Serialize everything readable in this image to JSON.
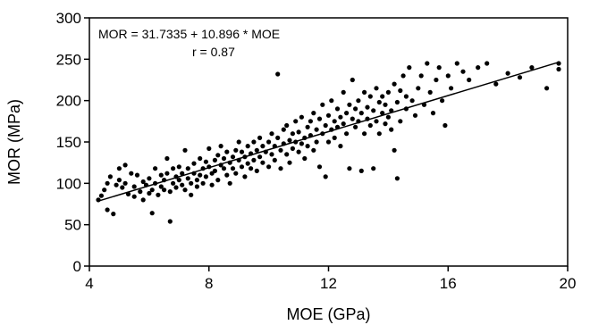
{
  "chart_data": {
    "type": "scatter",
    "xlabel": "MOE (GPa)",
    "ylabel": "MOR (MPa)",
    "xlim": [
      4,
      20
    ],
    "ylim": [
      0,
      300
    ],
    "xticks": [
      4,
      8,
      12,
      16,
      20
    ],
    "yticks": [
      0,
      50,
      100,
      150,
      200,
      250,
      300
    ],
    "grid": false,
    "legend": "none",
    "annotations": {
      "equation": "MOR = 31.7335 + 10.896 * MOE",
      "r": "r = 0.87"
    },
    "fit_line": {
      "intercept": 31.7335,
      "slope": 10.896,
      "x_range": [
        4.3,
        19.7
      ]
    },
    "colors": {
      "points": "#000000",
      "line": "#000000"
    },
    "series": [
      {
        "points": [
          [
            4.3,
            80
          ],
          [
            4.4,
            85
          ],
          [
            4.5,
            92
          ],
          [
            4.6,
            100
          ],
          [
            4.6,
            68
          ],
          [
            4.7,
            108
          ],
          [
            4.8,
            63
          ],
          [
            4.9,
            98
          ],
          [
            5.0,
            104
          ],
          [
            5.0,
            118
          ],
          [
            5.1,
            95
          ],
          [
            5.2,
            122
          ],
          [
            5.2,
            100
          ],
          [
            5.3,
            87
          ],
          [
            5.4,
            112
          ],
          [
            5.5,
            96
          ],
          [
            5.5,
            84
          ],
          [
            5.6,
            110
          ],
          [
            5.7,
            90
          ],
          [
            5.8,
            102
          ],
          [
            5.8,
            80
          ],
          [
            5.9,
            98
          ],
          [
            6.0,
            88
          ],
          [
            6.0,
            106
          ],
          [
            6.1,
            64
          ],
          [
            6.1,
            92
          ],
          [
            6.2,
            100
          ],
          [
            6.2,
            118
          ],
          [
            6.3,
            86
          ],
          [
            6.4,
            96
          ],
          [
            6.4,
            110
          ],
          [
            6.5,
            104
          ],
          [
            6.5,
            92
          ],
          [
            6.6,
            130
          ],
          [
            6.6,
            112
          ],
          [
            6.7,
            54
          ],
          [
            6.7,
            90
          ],
          [
            6.8,
            100
          ],
          [
            6.8,
            118
          ],
          [
            6.9,
            108
          ],
          [
            6.9,
            95
          ],
          [
            7.0,
            104
          ],
          [
            7.0,
            120
          ],
          [
            7.1,
            98
          ],
          [
            7.1,
            112
          ],
          [
            7.2,
            140
          ],
          [
            7.2,
            92
          ],
          [
            7.3,
            106
          ],
          [
            7.3,
            118
          ],
          [
            7.4,
            100
          ],
          [
            7.4,
            86
          ],
          [
            7.5,
            112
          ],
          [
            7.5,
            124
          ],
          [
            7.6,
            104
          ],
          [
            7.6,
            96
          ],
          [
            7.7,
            130
          ],
          [
            7.7,
            110
          ],
          [
            7.8,
            118
          ],
          [
            7.8,
            100
          ],
          [
            7.9,
            126
          ],
          [
            7.9,
            108
          ],
          [
            8.0,
            120
          ],
          [
            8.0,
            142
          ],
          [
            8.1,
            112
          ],
          [
            8.1,
            98
          ],
          [
            8.2,
            128
          ],
          [
            8.2,
            115
          ],
          [
            8.3,
            134
          ],
          [
            8.3,
            104
          ],
          [
            8.4,
            122
          ],
          [
            8.4,
            145
          ],
          [
            8.5,
            118
          ],
          [
            8.5,
            130
          ],
          [
            8.6,
            110
          ],
          [
            8.6,
            138
          ],
          [
            8.7,
            125
          ],
          [
            8.7,
            100
          ],
          [
            8.8,
            132
          ],
          [
            8.8,
            118
          ],
          [
            8.9,
            140
          ],
          [
            8.9,
            112
          ],
          [
            9.0,
            128
          ],
          [
            9.0,
            150
          ],
          [
            9.1,
            120
          ],
          [
            9.1,
            138
          ],
          [
            9.2,
            108
          ],
          [
            9.2,
            132
          ],
          [
            9.3,
            145
          ],
          [
            9.3,
            124
          ],
          [
            9.4,
            118
          ],
          [
            9.4,
            136
          ],
          [
            9.5,
            150
          ],
          [
            9.5,
            128
          ],
          [
            9.6,
            140
          ],
          [
            9.6,
            115
          ],
          [
            9.7,
            155
          ],
          [
            9.7,
            132
          ],
          [
            9.8,
            125
          ],
          [
            9.8,
            145
          ],
          [
            9.9,
            138
          ],
          [
            10.0,
            150
          ],
          [
            10.0,
            120
          ],
          [
            10.1,
            160
          ],
          [
            10.1,
            135
          ],
          [
            10.2,
            145
          ],
          [
            10.2,
            128
          ],
          [
            10.3,
            232
          ],
          [
            10.3,
            155
          ],
          [
            10.4,
            140
          ],
          [
            10.4,
            118
          ],
          [
            10.5,
            165
          ],
          [
            10.5,
            148
          ],
          [
            10.6,
            135
          ],
          [
            10.6,
            170
          ],
          [
            10.7,
            152
          ],
          [
            10.7,
            125
          ],
          [
            10.8,
            160
          ],
          [
            10.8,
            142
          ],
          [
            10.9,
            175
          ],
          [
            10.9,
            150
          ],
          [
            11.0,
            138
          ],
          [
            11.0,
            162
          ],
          [
            11.1,
            148
          ],
          [
            11.1,
            180
          ],
          [
            11.2,
            155
          ],
          [
            11.2,
            130
          ],
          [
            11.3,
            168
          ],
          [
            11.3,
            145
          ],
          [
            11.4,
            175
          ],
          [
            11.4,
            158
          ],
          [
            11.5,
            140
          ],
          [
            11.5,
            185
          ],
          [
            11.6,
            165
          ],
          [
            11.6,
            150
          ],
          [
            11.7,
            120
          ],
          [
            11.7,
            178
          ],
          [
            11.8,
            160
          ],
          [
            11.8,
            195
          ],
          [
            11.9,
            170
          ],
          [
            11.9,
            108
          ],
          [
            12.0,
            182
          ],
          [
            12.0,
            150
          ],
          [
            12.1,
            165
          ],
          [
            12.1,
            200
          ],
          [
            12.2,
            175
          ],
          [
            12.2,
            155
          ],
          [
            12.3,
            190
          ],
          [
            12.3,
            168
          ],
          [
            12.4,
            180
          ],
          [
            12.4,
            145
          ],
          [
            12.5,
            210
          ],
          [
            12.5,
            172
          ],
          [
            12.6,
            185
          ],
          [
            12.6,
            160
          ],
          [
            12.7,
            195
          ],
          [
            12.7,
            118
          ],
          [
            12.8,
            178
          ],
          [
            12.8,
            225
          ],
          [
            12.9,
            190
          ],
          [
            12.9,
            168
          ],
          [
            13.0,
            200
          ],
          [
            13.0,
            175
          ],
          [
            13.1,
            185
          ],
          [
            13.1,
            115
          ],
          [
            13.2,
            210
          ],
          [
            13.2,
            160
          ],
          [
            13.3,
            192
          ],
          [
            13.3,
            178
          ],
          [
            13.4,
            205
          ],
          [
            13.4,
            170
          ],
          [
            13.5,
            188
          ],
          [
            13.5,
            118
          ],
          [
            13.6,
            215
          ],
          [
            13.6,
            175
          ],
          [
            13.7,
            198
          ],
          [
            13.7,
            160
          ],
          [
            13.8,
            185
          ],
          [
            13.8,
            205
          ],
          [
            13.9,
            172
          ],
          [
            13.9,
            195
          ],
          [
            14.0,
            180
          ],
          [
            14.0,
            210
          ],
          [
            14.1,
            165
          ],
          [
            14.1,
            188
          ],
          [
            14.2,
            220
          ],
          [
            14.2,
            140
          ],
          [
            14.3,
            106
          ],
          [
            14.3,
            198
          ],
          [
            14.4,
            175
          ],
          [
            14.4,
            212
          ],
          [
            14.5,
            230
          ],
          [
            14.6,
            190
          ],
          [
            14.6,
            205
          ],
          [
            14.7,
            240
          ],
          [
            14.8,
            200
          ],
          [
            14.9,
            182
          ],
          [
            15.0,
            215
          ],
          [
            15.1,
            230
          ],
          [
            15.2,
            195
          ],
          [
            15.3,
            245
          ],
          [
            15.4,
            210
          ],
          [
            15.5,
            185
          ],
          [
            15.6,
            225
          ],
          [
            15.7,
            240
          ],
          [
            15.8,
            200
          ],
          [
            15.9,
            170
          ],
          [
            16.0,
            230
          ],
          [
            16.1,
            215
          ],
          [
            16.3,
            245
          ],
          [
            16.5,
            235
          ],
          [
            16.7,
            225
          ],
          [
            17.0,
            240
          ],
          [
            17.3,
            245
          ],
          [
            17.6,
            220
          ],
          [
            18.0,
            233
          ],
          [
            18.4,
            228
          ],
          [
            18.8,
            240
          ],
          [
            19.3,
            215
          ],
          [
            19.7,
            238
          ],
          [
            19.7,
            245
          ]
        ]
      }
    ]
  }
}
